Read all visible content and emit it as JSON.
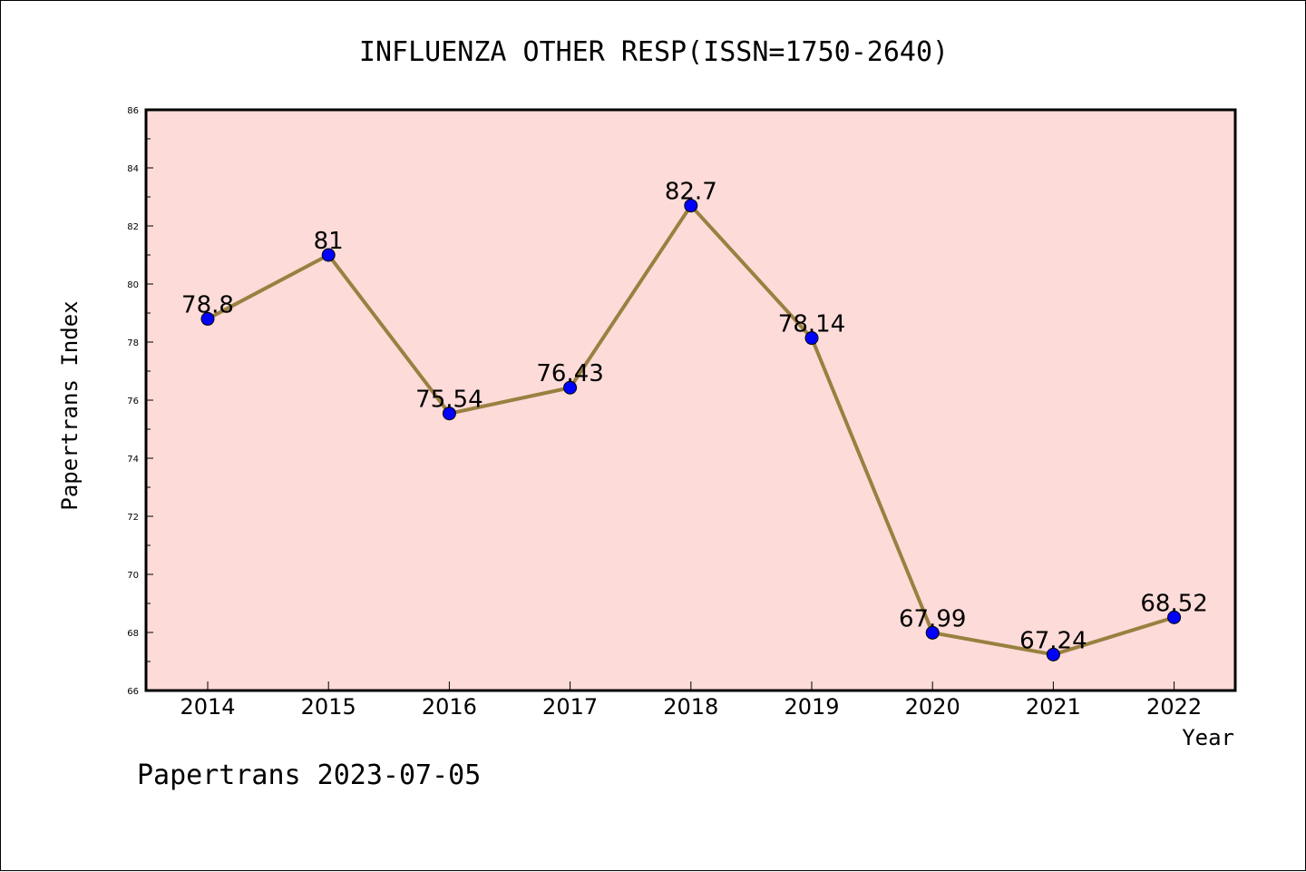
{
  "chart_data": {
    "type": "line",
    "title": "INFLUENZA OTHER RESP(ISSN=1750-2640)",
    "xlabel": "Year",
    "ylabel": "Papertrans Index",
    "categories": [
      "2014",
      "2015",
      "2016",
      "2017",
      "2018",
      "2019",
      "2020",
      "2021",
      "2022"
    ],
    "series": [
      {
        "values": [
          78.8,
          81,
          75.54,
          76.43,
          82.7,
          78.14,
          67.99,
          67.24,
          68.52
        ],
        "labels": [
          "78.8",
          "81",
          "75.54",
          "76.43",
          "82.7",
          "78.14",
          "67.99",
          "67.24",
          "68.52"
        ]
      }
    ],
    "ylim": [
      66,
      86
    ],
    "yticks": [
      "66",
      "68",
      "70",
      "72",
      "74",
      "76",
      "78",
      "80",
      "82",
      "84",
      "86"
    ],
    "grid": false,
    "colors": {
      "plot_background": "#fddbd9",
      "line": "#9a8040",
      "marker": "#0000ff"
    }
  },
  "footer": "Papertrans 2023-07-05"
}
